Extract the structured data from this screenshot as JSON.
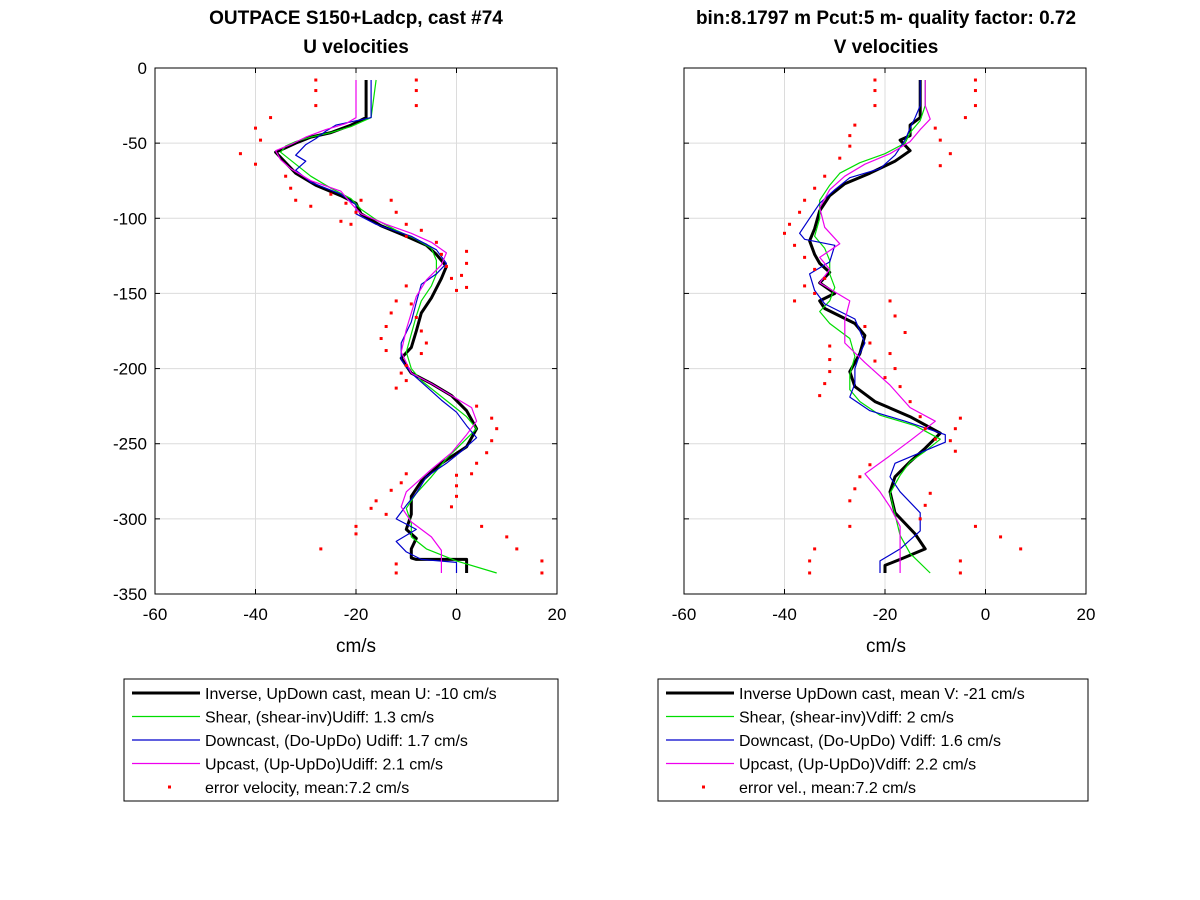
{
  "figure": {
    "left_title_line1": "OUTPACE S150+Ladcp, cast #74",
    "left_title_line2": "U velocities",
    "right_title_line1": "bin:8.1797 m  Pcut:5 m- quality factor:  0.72",
    "right_title_line2": "V velocities"
  },
  "colors": {
    "inverse": "#000000",
    "shear": "#00dd00",
    "downcast": "#0000cc",
    "upcast": "#ee00ee",
    "error": "#ff0000"
  },
  "chart_data": [
    {
      "type": "line",
      "title": "U velocities",
      "xlabel": "cm/s",
      "ylabel": "",
      "xlim": [
        -60,
        20
      ],
      "ylim": [
        -350,
        0
      ],
      "xticks": [
        -60,
        -40,
        -20,
        0,
        20
      ],
      "yticks": [
        0,
        -50,
        -100,
        -150,
        -200,
        -250,
        -300,
        -350
      ],
      "grid": true,
      "legend_position": "below",
      "series": [
        {
          "name": "Inverse, UpDown cast, mean U:  -10 cm/s",
          "key": "inverse",
          "width": 3,
          "x": [
            -18,
            -18,
            -21,
            -25,
            -29,
            -32,
            -34,
            -36,
            -34,
            -32,
            -28,
            -23,
            -20,
            -19,
            -15,
            -10,
            -6,
            -4,
            -2,
            -3,
            -5,
            -7,
            -8,
            -9,
            -11,
            -9,
            -5,
            -1,
            2,
            4,
            2,
            -3,
            -7,
            -9,
            -9,
            -10,
            -8,
            -9,
            -9,
            -8,
            2,
            2
          ],
          "y": [
            -8,
            -33,
            -38,
            -43,
            -46,
            -50,
            -53,
            -56,
            -63,
            -70,
            -78,
            -85,
            -90,
            -97,
            -105,
            -112,
            -118,
            -124,
            -132,
            -140,
            -153,
            -163,
            -175,
            -186,
            -193,
            -203,
            -210,
            -218,
            -228,
            -240,
            -252,
            -263,
            -275,
            -285,
            -297,
            -307,
            -313,
            -320,
            -326,
            -327,
            -327,
            -336
          ]
        },
        {
          "name": "Shear, (shear-inv)Udiff:  1.3 cm/s",
          "key": "shear",
          "width": 1.2,
          "x": [
            -16,
            -17,
            -21,
            -25,
            -29,
            -32,
            -34,
            -35,
            -32,
            -29,
            -25,
            -21,
            -19,
            -16,
            -12,
            -8,
            -5,
            -4,
            -4,
            -5,
            -7,
            -8,
            -9,
            -10,
            -9,
            -7,
            -4,
            -1,
            2,
            4,
            1,
            -2,
            -5,
            -8,
            -10,
            -9,
            -9,
            -6,
            0,
            8
          ],
          "y": [
            -8,
            -33,
            -39,
            -43,
            -46,
            -49,
            -52,
            -56,
            -64,
            -72,
            -80,
            -87,
            -94,
            -101,
            -108,
            -114,
            -120,
            -128,
            -137,
            -145,
            -155,
            -165,
            -177,
            -189,
            -200,
            -208,
            -216,
            -224,
            -232,
            -240,
            -250,
            -260,
            -272,
            -283,
            -293,
            -303,
            -312,
            -320,
            -328,
            -336
          ]
        },
        {
          "name": "Downcast, (Do-UpDo) Udiff:  1.7 cm/s",
          "key": "downcast",
          "width": 1.2,
          "x": [
            -17,
            -17,
            -24,
            -26,
            -28,
            -30,
            -32,
            -30,
            -32,
            -29,
            -23,
            -20,
            -20,
            -16,
            -9,
            -4,
            -2,
            -4,
            -7,
            -8,
            -9,
            -11,
            -11,
            -9,
            -6,
            -3,
            0,
            2,
            4,
            1,
            -2,
            -6,
            -8,
            -10,
            -12,
            -8,
            -12,
            -10,
            -7,
            0,
            0
          ],
          "y": [
            -8,
            -33,
            -38,
            -42,
            -47,
            -51,
            -58,
            -62,
            -68,
            -76,
            -84,
            -91,
            -97,
            -104,
            -112,
            -121,
            -130,
            -137,
            -144,
            -156,
            -169,
            -183,
            -194,
            -203,
            -212,
            -221,
            -229,
            -238,
            -246,
            -255,
            -263,
            -272,
            -283,
            -291,
            -300,
            -307,
            -315,
            -322,
            -327,
            -329,
            -336
          ]
        },
        {
          "name": "Upcast, (Up-UpDo)Udiff:  2.1 cm/s",
          "key": "upcast",
          "width": 1.2,
          "x": [
            -20,
            -20,
            -22,
            -26,
            -30,
            -33,
            -36,
            -35,
            -33,
            -29,
            -23,
            -21,
            -19,
            -14,
            -9,
            -5,
            -2,
            -3,
            -6,
            -8,
            -9,
            -10,
            -11,
            -9,
            -5,
            -1,
            3,
            4,
            2,
            -1,
            -5,
            -10,
            -11,
            -9,
            -5,
            -3,
            -3
          ],
          "y": [
            -8,
            -33,
            -37,
            -41,
            -46,
            -51,
            -55,
            -61,
            -67,
            -75,
            -82,
            -90,
            -97,
            -104,
            -110,
            -116,
            -123,
            -131,
            -141,
            -152,
            -163,
            -174,
            -189,
            -203,
            -210,
            -218,
            -226,
            -235,
            -244,
            -256,
            -267,
            -282,
            -292,
            -302,
            -312,
            -321,
            -336
          ]
        },
        {
          "name": "error velocity, mean:7.2 cm/s",
          "key": "error",
          "marker": "dot",
          "x": [
            -28,
            -28,
            -28,
            -8,
            -8,
            -8,
            -37,
            -40,
            -39,
            -43,
            -40,
            -34,
            -33,
            -32,
            -29,
            -25,
            -22,
            -23,
            -19,
            -20,
            -21,
            -13,
            -12,
            -10,
            -10,
            -7,
            -4,
            -3,
            -2,
            -1,
            0,
            2,
            2,
            1,
            2,
            -10,
            -12,
            -13,
            -14,
            -15,
            -14,
            -9,
            -8,
            -7,
            -6,
            -7,
            -10,
            -11,
            -10,
            -12,
            4,
            7,
            8,
            7,
            6,
            4,
            3,
            -10,
            -11,
            -13,
            -16,
            -17,
            -14,
            0,
            0,
            0,
            -1,
            -20,
            -20,
            -27,
            5,
            10,
            12,
            17,
            -12,
            -12,
            17
          ],
          "y": [
            -8,
            -15,
            -25,
            -8,
            -15,
            -25,
            -33,
            -40,
            -48,
            -57,
            -64,
            -72,
            -80,
            -88,
            -92,
            -84,
            -90,
            -102,
            -88,
            -96,
            -104,
            -88,
            -96,
            -104,
            -112,
            -108,
            -116,
            -124,
            -132,
            -140,
            -148,
            -122,
            -130,
            -138,
            -146,
            -145,
            -155,
            -163,
            -172,
            -180,
            -188,
            -157,
            -166,
            -175,
            -183,
            -190,
            -198,
            -203,
            -208,
            -213,
            -225,
            -233,
            -240,
            -248,
            -256,
            -263,
            -270,
            -270,
            -276,
            -281,
            -288,
            -293,
            -297,
            -271,
            -278,
            -285,
            -292,
            -305,
            -310,
            -320,
            -305,
            -312,
            -320,
            -328,
            -330,
            -336,
            -336
          ]
        }
      ]
    },
    {
      "type": "line",
      "title": "V velocities",
      "xlabel": "cm/s",
      "ylabel": "",
      "xlim": [
        -60,
        20
      ],
      "ylim": [
        -350,
        0
      ],
      "xticks": [
        -60,
        -40,
        -20,
        0,
        20
      ],
      "yticks": [
        0,
        -50,
        -100,
        -150,
        -200,
        -250,
        -300,
        -350
      ],
      "grid": true,
      "legend_position": "below",
      "series": [
        {
          "name": "Inverse UpDown cast, mean V:  -21 cm/s",
          "key": "inverse",
          "width": 3,
          "x": [
            -13,
            -13,
            -13,
            -15,
            -15,
            -17,
            -15,
            -18,
            -23,
            -28,
            -31,
            -33,
            -34,
            -35,
            -34,
            -33,
            -31,
            -33,
            -30,
            -33,
            -32,
            -29,
            -26,
            -24,
            -25,
            -27,
            -26,
            -22,
            -15,
            -9,
            -12,
            -15,
            -18,
            -19,
            -18,
            -14,
            -12,
            -17,
            -20,
            -20
          ],
          "y": [
            -8,
            -25,
            -33,
            -38,
            -45,
            -48,
            -55,
            -62,
            -70,
            -77,
            -85,
            -95,
            -107,
            -115,
            -124,
            -130,
            -136,
            -143,
            -150,
            -155,
            -160,
            -165,
            -170,
            -178,
            -190,
            -202,
            -212,
            -222,
            -232,
            -243,
            -253,
            -262,
            -272,
            -282,
            -296,
            -310,
            -320,
            -327,
            -331,
            -336
          ]
        },
        {
          "name": "Shear, (shear-inv)Vdiff:  2 cm/s",
          "key": "shear",
          "width": 1.2,
          "x": [
            -12,
            -12,
            -13,
            -15,
            -16,
            -20,
            -25,
            -29,
            -31,
            -33,
            -33,
            -34,
            -32,
            -31,
            -31,
            -30,
            -31,
            -33,
            -31,
            -27,
            -26,
            -27,
            -27,
            -25,
            -21,
            -14,
            -9,
            -12,
            -15,
            -17,
            -19,
            -18,
            -17,
            -15,
            -11
          ],
          "y": [
            -8,
            -25,
            -35,
            -43,
            -50,
            -57,
            -63,
            -70,
            -78,
            -88,
            -100,
            -112,
            -120,
            -128,
            -137,
            -146,
            -155,
            -162,
            -170,
            -180,
            -192,
            -204,
            -214,
            -222,
            -231,
            -238,
            -247,
            -255,
            -262,
            -271,
            -283,
            -297,
            -311,
            -323,
            -336
          ]
        },
        {
          "name": "Downcast, (Do-UpDo) Vdiff:  1.6 cm/s",
          "key": "downcast",
          "width": 1.2,
          "x": [
            -13,
            -13,
            -14,
            -15,
            -16,
            -18,
            -21,
            -27,
            -30,
            -33,
            -35,
            -37,
            -36,
            -30,
            -31,
            -35,
            -34,
            -32,
            -26,
            -25,
            -24,
            -25,
            -26,
            -26,
            -27,
            -23,
            -16,
            -8,
            -8,
            -13,
            -18,
            -19,
            -17,
            -13,
            -13,
            -17,
            -21,
            -21
          ],
          "y": [
            -8,
            -25,
            -33,
            -40,
            -48,
            -58,
            -67,
            -73,
            -81,
            -90,
            -100,
            -110,
            -114,
            -118,
            -129,
            -137,
            -148,
            -157,
            -167,
            -175,
            -183,
            -190,
            -200,
            -210,
            -219,
            -228,
            -235,
            -244,
            -249,
            -256,
            -263,
            -272,
            -282,
            -296,
            -308,
            -320,
            -328,
            -336
          ]
        },
        {
          "name": "Upcast, (Up-UpDo)Vdiff:  2.2 cm/s",
          "key": "upcast",
          "width": 1.2,
          "x": [
            -12,
            -12,
            -11,
            -13,
            -15,
            -19,
            -24,
            -28,
            -31,
            -33,
            -32,
            -29,
            -33,
            -31,
            -33,
            -27,
            -28,
            -28,
            -24,
            -19,
            -15,
            -10,
            -15,
            -19,
            -24,
            -21,
            -19,
            -17,
            -17,
            -17
          ],
          "y": [
            -8,
            -25,
            -34,
            -41,
            -49,
            -57,
            -64,
            -72,
            -81,
            -93,
            -106,
            -117,
            -126,
            -134,
            -143,
            -155,
            -168,
            -183,
            -196,
            -211,
            -226,
            -235,
            -248,
            -258,
            -270,
            -282,
            -292,
            -305,
            -320,
            -336
          ]
        },
        {
          "name": "error vel., mean:7.2 cm/s",
          "key": "error",
          "marker": "dot",
          "x": [
            -22,
            -22,
            -22,
            -2,
            -2,
            -2,
            -4,
            -26,
            -27,
            -27,
            -29,
            -10,
            -9,
            -7,
            -9,
            -32,
            -34,
            -36,
            -37,
            -39,
            -40,
            -38,
            -36,
            -34,
            -32,
            -36,
            -34,
            -38,
            -19,
            -18,
            -16,
            -24,
            -23,
            -22,
            -20,
            -31,
            -31,
            -31,
            -32,
            -33,
            -19,
            -18,
            -17,
            -15,
            -13,
            -12,
            -10,
            -5,
            -6,
            -7,
            -6,
            -23,
            -25,
            -26,
            -27,
            -11,
            -12,
            -13,
            -27,
            -2,
            3,
            7,
            -34,
            -35,
            -35,
            -5,
            -5
          ],
          "y": [
            -8,
            -15,
            -25,
            -8,
            -15,
            -25,
            -33,
            -38,
            -45,
            -52,
            -60,
            -40,
            -48,
            -57,
            -65,
            -72,
            -80,
            -88,
            -96,
            -104,
            -110,
            -118,
            -126,
            -134,
            -140,
            -145,
            -150,
            -155,
            -155,
            -165,
            -176,
            -172,
            -183,
            -195,
            -206,
            -185,
            -194,
            -202,
            -210,
            -218,
            -190,
            -200,
            -212,
            -222,
            -232,
            -240,
            -247,
            -233,
            -240,
            -248,
            -255,
            -264,
            -272,
            -280,
            -288,
            -283,
            -291,
            -300,
            -305,
            -305,
            -312,
            -320,
            -320,
            -328,
            -336,
            -328,
            -336
          ]
        }
      ]
    }
  ]
}
